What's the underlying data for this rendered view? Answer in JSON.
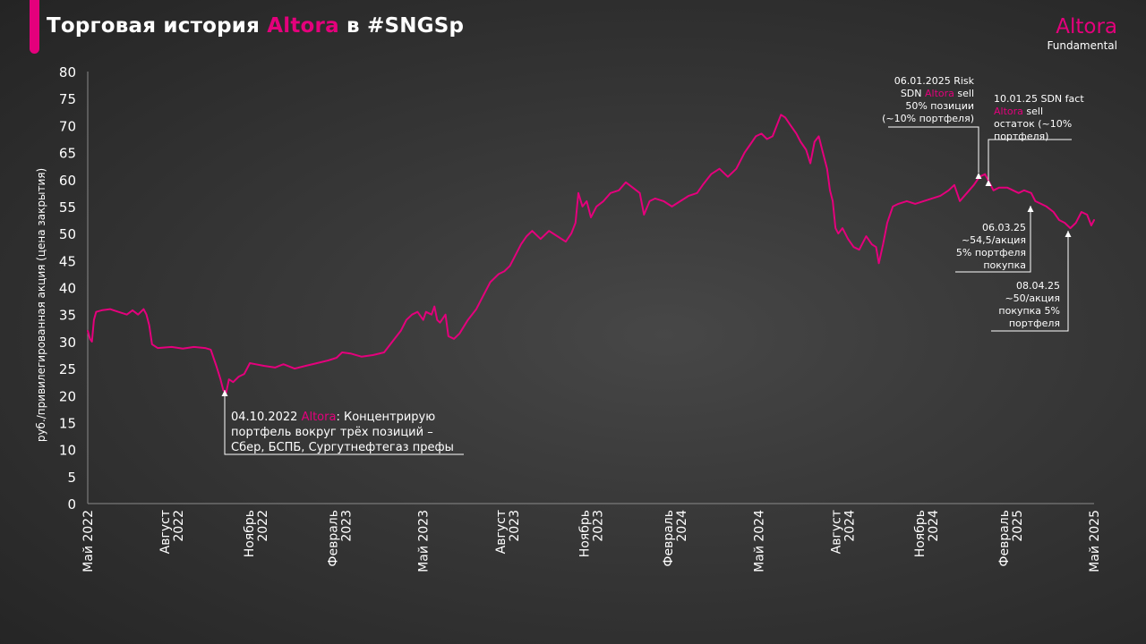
{
  "header": {
    "title_prefix": "Торговая история ",
    "title_brand": "Altora",
    "title_suffix": " в #SNGSp",
    "brand_name": "Altora",
    "brand_sub": "Fundamental",
    "accent_color": "#e4007c"
  },
  "annotations": {
    "a1": {
      "date": "04.10.2022 ",
      "brand": "Altora",
      "text1": ": Концентрирую",
      "line2": "портфель  вокруг  трёх позиций  –",
      "line3": "Сбер, БСПБ, Сургутнефтегаз   префы"
    },
    "a2": {
      "line1": "06.01.2025 Risk",
      "line2a": "SDN ",
      "brand": "Altora",
      "line2b": " sell",
      "line3": "50% позиции",
      "line4": "(~10% портфеля)"
    },
    "a3": {
      "line1": "10.01.25 SDN fact",
      "brand": "Altora",
      "line2b": " sell",
      "line3": "остаток (~10%",
      "line4": "портфеля)"
    },
    "a4": {
      "line1": "06.03.25",
      "line2": "~54,5/акция",
      "line3": "5% портфеля",
      "line4": "покупка"
    },
    "a5": {
      "line1": "08.04.25",
      "line2": "~50/акция",
      "line3": "покупка 5%",
      "line4": "портфеля"
    }
  },
  "chart_data": {
    "type": "line",
    "title": "Торговая история Altora в #SNGSp",
    "ylabel": "руб./привилегированная  акция (цена закрытия)",
    "ylim": [
      0,
      80
    ],
    "yticks": [
      0,
      5,
      10,
      15,
      20,
      25,
      30,
      35,
      40,
      45,
      50,
      55,
      60,
      65,
      70,
      75,
      80
    ],
    "xlim": [
      0,
      36
    ],
    "xticks": [
      {
        "m": 0,
        "label": [
          "Май 2022"
        ]
      },
      {
        "m": 3,
        "label": [
          "Август",
          "2022"
        ]
      },
      {
        "m": 6,
        "label": [
          "Ноябрь",
          "2022"
        ]
      },
      {
        "m": 9,
        "label": [
          "Февраль",
          "2023"
        ]
      },
      {
        "m": 12,
        "label": [
          "Май 2023"
        ]
      },
      {
        "m": 15,
        "label": [
          "Август",
          "2023"
        ]
      },
      {
        "m": 18,
        "label": [
          "Ноябрь",
          "2023"
        ]
      },
      {
        "m": 21,
        "label": [
          "Февраль",
          "2024"
        ]
      },
      {
        "m": 24,
        "label": [
          "Май 2024"
        ]
      },
      {
        "m": 27,
        "label": [
          "Август",
          "2024"
        ]
      },
      {
        "m": 30,
        "label": [
          "Ноябрь",
          "2024"
        ]
      },
      {
        "m": 33,
        "label": [
          "Февраль",
          "2025"
        ]
      },
      {
        "m": 36,
        "label": [
          "Май 2025"
        ]
      }
    ],
    "series": [
      {
        "color": "#e4007c",
        "points": [
          [
            0,
            32
          ],
          [
            0.08,
            30.5
          ],
          [
            0.15,
            30
          ],
          [
            0.22,
            34
          ],
          [
            0.3,
            35.5
          ],
          [
            0.5,
            35.8
          ],
          [
            0.8,
            36
          ],
          [
            1.1,
            35.5
          ],
          [
            1.4,
            35
          ],
          [
            1.6,
            35.8
          ],
          [
            1.8,
            35
          ],
          [
            2.0,
            36
          ],
          [
            2.1,
            35
          ],
          [
            2.2,
            33
          ],
          [
            2.3,
            29.5
          ],
          [
            2.5,
            28.8
          ],
          [
            3.0,
            29
          ],
          [
            3.4,
            28.7
          ],
          [
            3.8,
            29
          ],
          [
            4.2,
            28.8
          ],
          [
            4.4,
            28.5
          ],
          [
            4.5,
            27
          ],
          [
            4.6,
            25.5
          ],
          [
            4.75,
            23
          ],
          [
            4.85,
            21
          ],
          [
            4.95,
            20.5
          ],
          [
            5.05,
            23
          ],
          [
            5.2,
            22.5
          ],
          [
            5.4,
            23.5
          ],
          [
            5.6,
            24
          ],
          [
            5.8,
            26
          ],
          [
            6.0,
            25.8
          ],
          [
            6.3,
            25.5
          ],
          [
            6.7,
            25.2
          ],
          [
            7.0,
            25.8
          ],
          [
            7.4,
            25
          ],
          [
            7.8,
            25.5
          ],
          [
            8.2,
            26
          ],
          [
            8.6,
            26.5
          ],
          [
            8.9,
            27
          ],
          [
            9.1,
            28
          ],
          [
            9.4,
            27.8
          ],
          [
            9.8,
            27.2
          ],
          [
            10.2,
            27.5
          ],
          [
            10.6,
            28
          ],
          [
            10.9,
            30
          ],
          [
            11.2,
            32
          ],
          [
            11.4,
            34
          ],
          [
            11.6,
            35
          ],
          [
            11.8,
            35.5
          ],
          [
            12.0,
            34
          ],
          [
            12.1,
            35.5
          ],
          [
            12.3,
            35
          ],
          [
            12.4,
            36.5
          ],
          [
            12.5,
            34
          ],
          [
            12.6,
            33.5
          ],
          [
            12.8,
            35
          ],
          [
            12.9,
            31
          ],
          [
            13.1,
            30.5
          ],
          [
            13.3,
            31.5
          ],
          [
            13.6,
            34
          ],
          [
            13.9,
            36
          ],
          [
            14.1,
            38
          ],
          [
            14.4,
            41
          ],
          [
            14.7,
            42.5
          ],
          [
            14.9,
            43
          ],
          [
            15.1,
            44
          ],
          [
            15.3,
            46
          ],
          [
            15.5,
            48
          ],
          [
            15.7,
            49.5
          ],
          [
            15.9,
            50.5
          ],
          [
            16.2,
            49
          ],
          [
            16.5,
            50.5
          ],
          [
            16.8,
            49.5
          ],
          [
            17.1,
            48.5
          ],
          [
            17.3,
            50
          ],
          [
            17.45,
            52
          ],
          [
            17.55,
            57.5
          ],
          [
            17.7,
            55
          ],
          [
            17.85,
            56
          ],
          [
            18.0,
            53
          ],
          [
            18.2,
            55
          ],
          [
            18.45,
            56
          ],
          [
            18.7,
            57.5
          ],
          [
            19.0,
            58
          ],
          [
            19.25,
            59.5
          ],
          [
            19.5,
            58.5
          ],
          [
            19.75,
            57.5
          ],
          [
            19.9,
            53.5
          ],
          [
            20.1,
            56
          ],
          [
            20.3,
            56.5
          ],
          [
            20.6,
            56
          ],
          [
            20.9,
            55
          ],
          [
            21.2,
            56
          ],
          [
            21.5,
            57
          ],
          [
            21.8,
            57.5
          ],
          [
            22.0,
            59
          ],
          [
            22.3,
            61
          ],
          [
            22.6,
            62
          ],
          [
            22.9,
            60.5
          ],
          [
            23.2,
            62
          ],
          [
            23.5,
            65
          ],
          [
            23.7,
            66.5
          ],
          [
            23.9,
            68
          ],
          [
            24.1,
            68.5
          ],
          [
            24.3,
            67.5
          ],
          [
            24.5,
            68
          ],
          [
            24.65,
            70
          ],
          [
            24.8,
            72
          ],
          [
            24.95,
            71.5
          ],
          [
            25.15,
            70
          ],
          [
            25.35,
            68.5
          ],
          [
            25.5,
            67
          ],
          [
            25.7,
            65.5
          ],
          [
            25.85,
            63
          ],
          [
            26.0,
            67
          ],
          [
            26.15,
            68
          ],
          [
            26.3,
            65
          ],
          [
            26.45,
            62
          ],
          [
            26.55,
            58
          ],
          [
            26.65,
            56
          ],
          [
            26.75,
            51
          ],
          [
            26.85,
            50
          ],
          [
            27.0,
            51
          ],
          [
            27.2,
            49
          ],
          [
            27.4,
            47.5
          ],
          [
            27.6,
            47
          ],
          [
            27.85,
            49.5
          ],
          [
            28.05,
            48
          ],
          [
            28.2,
            47.5
          ],
          [
            28.3,
            44.5
          ],
          [
            28.45,
            48
          ],
          [
            28.6,
            52
          ],
          [
            28.8,
            55
          ],
          [
            29.0,
            55.5
          ],
          [
            29.3,
            56
          ],
          [
            29.6,
            55.5
          ],
          [
            29.9,
            56
          ],
          [
            30.2,
            56.5
          ],
          [
            30.5,
            57
          ],
          [
            30.8,
            58
          ],
          [
            31.0,
            59
          ],
          [
            31.2,
            56
          ],
          [
            31.45,
            57.5
          ],
          [
            31.7,
            59
          ],
          [
            31.9,
            60.5
          ],
          [
            32.1,
            61
          ],
          [
            32.25,
            59.5
          ],
          [
            32.4,
            58
          ],
          [
            32.6,
            58.5
          ],
          [
            32.9,
            58.5
          ],
          [
            33.1,
            58
          ],
          [
            33.3,
            57.5
          ],
          [
            33.5,
            58
          ],
          [
            33.75,
            57.5
          ],
          [
            33.9,
            56
          ],
          [
            34.1,
            55.5
          ],
          [
            34.3,
            55
          ],
          [
            34.55,
            54
          ],
          [
            34.75,
            52.5
          ],
          [
            34.95,
            52
          ],
          [
            35.15,
            51
          ],
          [
            35.35,
            52
          ],
          [
            35.55,
            54
          ],
          [
            35.75,
            53.5
          ],
          [
            35.9,
            51.5
          ],
          [
            36.0,
            52.5
          ]
        ]
      }
    ]
  }
}
